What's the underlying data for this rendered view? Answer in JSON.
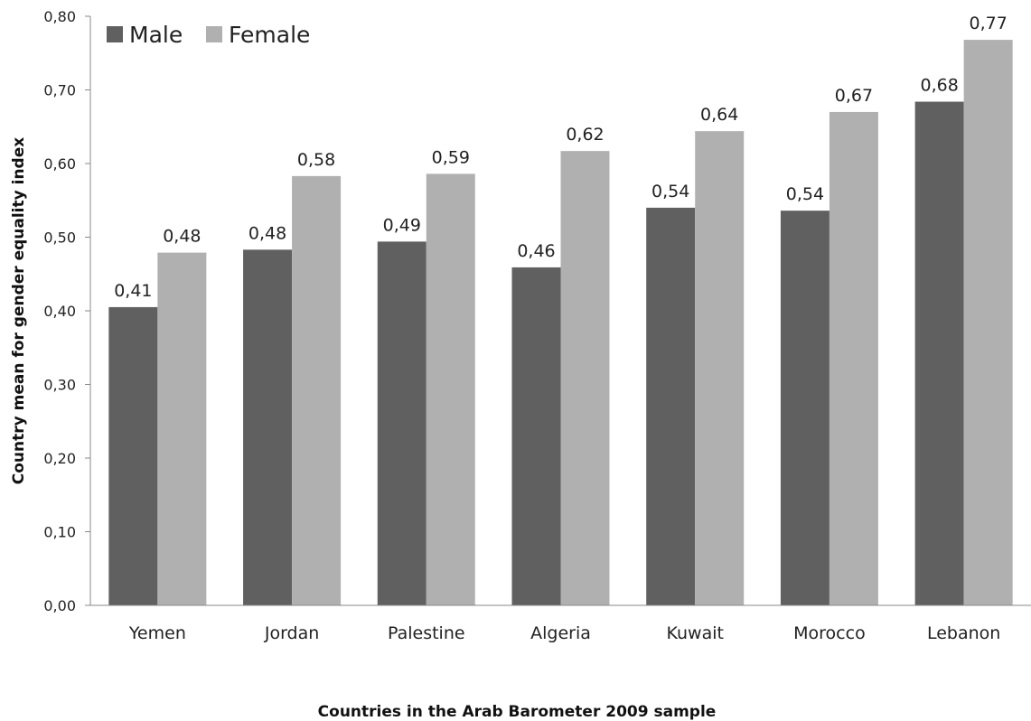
{
  "chart_data": {
    "type": "bar",
    "title": "",
    "xlabel": "Countries in the Arab Barometer 2009 sample",
    "ylabel": "Country mean for gender equality index",
    "categories": [
      "Yemen",
      "Jordan",
      "Palestine",
      "Algeria",
      "Kuwait",
      "Morocco",
      "Lebanon"
    ],
    "series": [
      {
        "name": "Male",
        "color": "#606060",
        "values": [
          0.405,
          0.483,
          0.494,
          0.459,
          0.54,
          0.536,
          0.684
        ],
        "labels": [
          "0,41",
          "0,48",
          "0,49",
          "0,46",
          "0,54",
          "0,54",
          "0,68"
        ]
      },
      {
        "name": "Female",
        "color": "#b0b0b0",
        "values": [
          0.479,
          0.583,
          0.586,
          0.617,
          0.644,
          0.67,
          0.768
        ],
        "labels": [
          "0,48",
          "0,58",
          "0,59",
          "0,62",
          "0,64",
          "0,67",
          "0,77"
        ]
      }
    ],
    "ylim": [
      0,
      0.8
    ],
    "yticks": [
      0,
      0.1,
      0.2,
      0.3,
      0.4,
      0.5,
      0.6,
      0.7,
      0.8
    ],
    "ytick_labels": [
      "0,00",
      "0,10",
      "0,20",
      "0,30",
      "0,40",
      "0,50",
      "0,60",
      "0,70",
      "0,80"
    ],
    "grid": false,
    "legend_position": "top-left"
  }
}
